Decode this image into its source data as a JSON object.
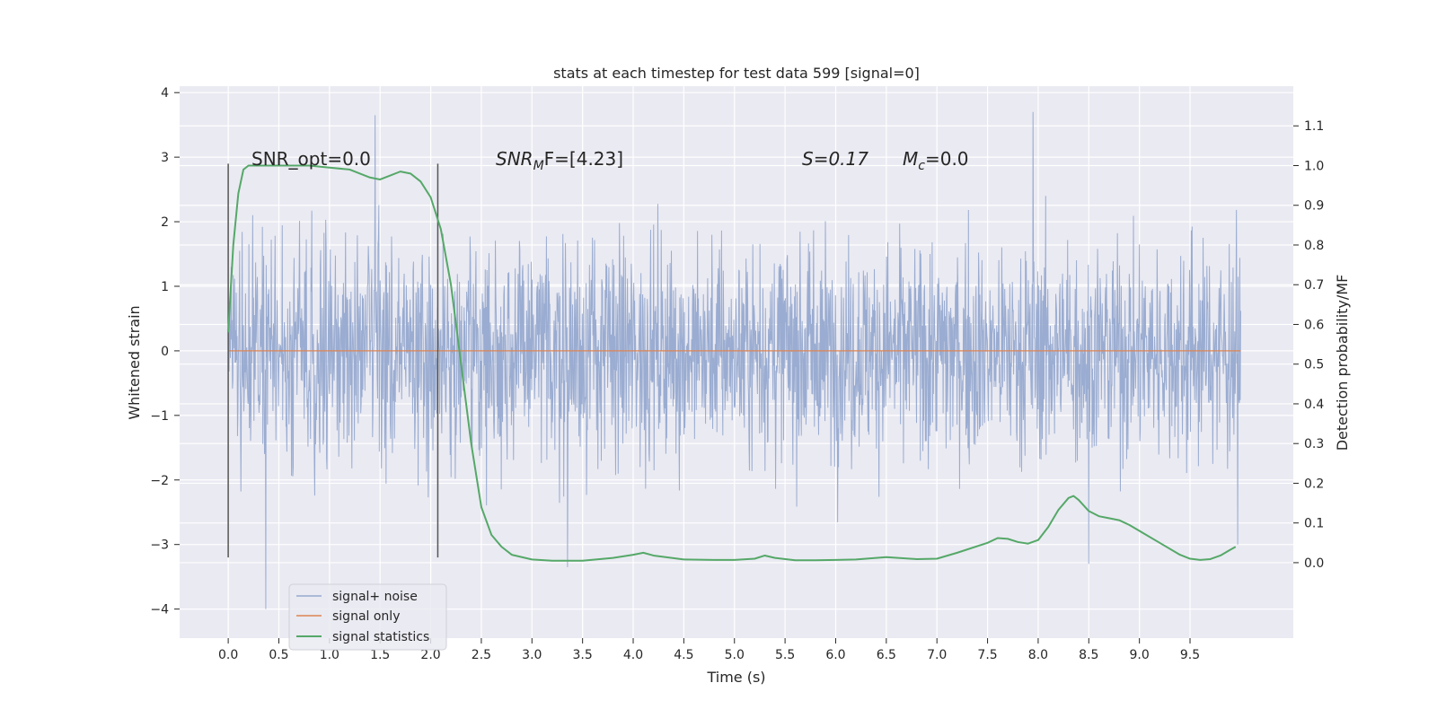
{
  "chart_data": {
    "type": "line",
    "title": "stats at each timestep for test data 599 [signal=0]",
    "xlabel": "Time (s)",
    "ylabel": "Whitened strain",
    "y2label": "Detection probability/MF",
    "xlim": [
      -0.48,
      10.52
    ],
    "ylim": [
      -4.45,
      4.1
    ],
    "y2lim": [
      -0.19,
      1.2
    ],
    "xticks": [
      "0.0",
      "0.5",
      "1.0",
      "1.5",
      "2.0",
      "2.5",
      "3.0",
      "3.5",
      "4.0",
      "4.5",
      "5.0",
      "5.5",
      "6.0",
      "6.5",
      "7.0",
      "7.5",
      "8.0",
      "8.5",
      "9.0",
      "9.5"
    ],
    "yticks": [
      "−4",
      "−3",
      "−2",
      "−1",
      "0",
      "1",
      "2",
      "3",
      "4"
    ],
    "y2ticks": [
      "0.0",
      "0.1",
      "0.2",
      "0.3",
      "0.4",
      "0.5",
      "0.6",
      "0.7",
      "0.8",
      "0.9",
      "1.0",
      "1.1"
    ],
    "grid": true,
    "legend_position": "lower-left",
    "annotations": {
      "snr_opt": "SNR_opt=0.0",
      "snr_mf": "SNR",
      "snr_mf_sub": "M",
      "snr_mf_rest": "F=[4.23]",
      "s_stat": "S=0.17",
      "mc_main": "M",
      "mc_sub": "c",
      "mc_rest": "=0.0"
    },
    "vlines_x": [
      0.0,
      2.07
    ],
    "series": [
      {
        "name": "signal+ noise",
        "axis": "left",
        "color": "#96a9cf",
        "kind": "noise",
        "x_range": [
          0.0,
          10.0
        ],
        "typical_range": [
          -1.8,
          2.2
        ],
        "peaks": [
          {
            "x": 0.37,
            "y": -4.0
          },
          {
            "x": 1.45,
            "y": 3.65
          },
          {
            "x": 3.35,
            "y": -3.35
          },
          {
            "x": 7.95,
            "y": 3.7
          },
          {
            "x": 8.5,
            "y": -3.3
          },
          {
            "x": 0.03,
            "y": 1.3
          },
          {
            "x": 9.97,
            "y": -3.0
          }
        ]
      },
      {
        "name": "signal only",
        "axis": "left",
        "color": "#dd8452",
        "x": [
          0.0,
          10.0
        ],
        "y": [
          0.0,
          0.0
        ]
      },
      {
        "name": "signal statistics",
        "axis": "right",
        "color": "#55a868",
        "x": [
          0.0,
          0.05,
          0.1,
          0.15,
          0.2,
          0.4,
          0.6,
          0.8,
          1.0,
          1.2,
          1.4,
          1.5,
          1.6,
          1.7,
          1.8,
          1.9,
          2.0,
          2.1,
          2.2,
          2.3,
          2.4,
          2.5,
          2.6,
          2.7,
          2.8,
          3.0,
          3.2,
          3.5,
          3.8,
          4.0,
          4.1,
          4.2,
          4.5,
          4.8,
          5.0,
          5.2,
          5.3,
          5.4,
          5.6,
          5.8,
          6.0,
          6.2,
          6.5,
          6.8,
          7.0,
          7.2,
          7.5,
          7.6,
          7.7,
          7.8,
          7.9,
          8.0,
          8.1,
          8.2,
          8.3,
          8.35,
          8.4,
          8.5,
          8.6,
          8.7,
          8.8,
          8.9,
          9.0,
          9.2,
          9.4,
          9.5,
          9.6,
          9.7,
          9.8,
          9.9,
          9.95
        ],
        "y": [
          0.58,
          0.8,
          0.93,
          0.99,
          1.0,
          1.0,
          1.0,
          1.0,
          0.995,
          0.99,
          0.97,
          0.965,
          0.975,
          0.985,
          0.98,
          0.96,
          0.92,
          0.84,
          0.7,
          0.5,
          0.3,
          0.14,
          0.07,
          0.04,
          0.02,
          0.008,
          0.005,
          0.005,
          0.012,
          0.02,
          0.025,
          0.018,
          0.008,
          0.007,
          0.007,
          0.01,
          0.018,
          0.012,
          0.006,
          0.006,
          0.007,
          0.008,
          0.014,
          0.009,
          0.01,
          0.025,
          0.05,
          0.062,
          0.06,
          0.052,
          0.048,
          0.057,
          0.09,
          0.133,
          0.163,
          0.168,
          0.158,
          0.13,
          0.117,
          0.112,
          0.107,
          0.095,
          0.08,
          0.05,
          0.02,
          0.01,
          0.007,
          0.009,
          0.018,
          0.033,
          0.04
        ]
      }
    ]
  }
}
